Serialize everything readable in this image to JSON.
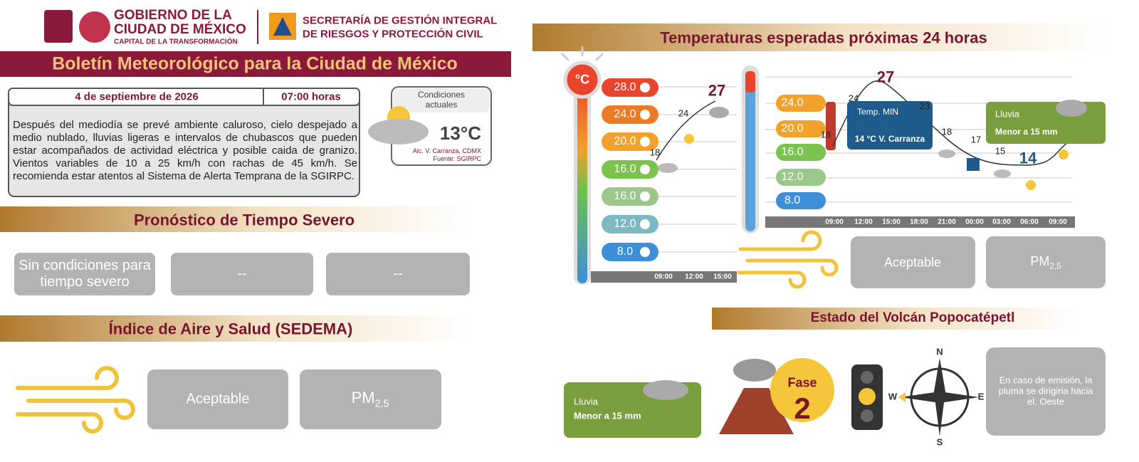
{
  "header": {
    "gov_line1": "GOBIERNO DE LA",
    "gov_line2": "CIUDAD DE MÉXICO",
    "gov_motto": "CAPITAL DE LA TRANSFORMACIÓN",
    "secretaria_line1": "SECRETARÍA DE GESTIÓN INTEGRAL",
    "secretaria_line2": "DE RIESGOS Y PROTECCIÓN CIVIL"
  },
  "title": "Boletín Meteorológico para la Ciudad de México",
  "bulletin": {
    "date": "4 de septiembre de 2026",
    "time": "07:00 horas",
    "text": "Después del mediodía se prevé ambiente caluroso, cielo despejado a medio nublado, lluvias ligeras e intervalos de chubascos que pueden estar acompañados de actividad eléctrica y posible caida de granizo. Vientos variables de 10 a 25 km/h con rachas de 45 km/h. Se recomienda estar atentos al Sistema de Alerta Temprana de la SGIRPC."
  },
  "current": {
    "label": "Condiciones actuales",
    "temperature": "13°C",
    "location": "Alc. V. Carranza, CDMX",
    "source": "Fuente: SGIRPC"
  },
  "severe": {
    "title": "Pronóstico de Tiempo Severo",
    "items": [
      "Sin condiciones para tiempo severo",
      "--",
      "--"
    ]
  },
  "air": {
    "title": "Índice de Aire y Salud (SEDEMA)",
    "quality": "Aceptable",
    "pollutant": "PM",
    "pollutant_sub": "2,5"
  },
  "temperatures": {
    "title": "Temperaturas esperadas próximas 24 horas",
    "unit": "°C",
    "panel1": {
      "scale": [
        "28.0",
        "24.0",
        "20.0",
        "16.0",
        "16.0",
        "12.0",
        "8.0"
      ],
      "times": [
        "09:00",
        "12:00",
        "15:00"
      ],
      "points": [
        "18",
        "24",
        "27"
      ]
    },
    "panel2": {
      "scale": [
        "24.0",
        "20.0",
        "16.0",
        "12.0",
        "8.0"
      ],
      "times": [
        "09:00",
        "12:00",
        "15:00",
        "18:00",
        "21:00",
        "00:00",
        "03:00",
        "06:00",
        "09:00"
      ],
      "points": [
        "18",
        "24",
        "27",
        "23",
        "18",
        "17",
        "15",
        "14"
      ],
      "min_label": "Temp. MIN",
      "min_detail": "14 °C V. Carranza",
      "rain_label": "Lluvia",
      "rain_detail": "Menor a 15 mm"
    },
    "air_quality": "Aceptable",
    "pollutant": "PM",
    "pollutant_sub": "2,5"
  },
  "volcano": {
    "title": "Estado del Volcán Popocatépetl",
    "rain_label": "Lluvia",
    "rain_detail": "Menor a 15 mm",
    "phase_label": "Fase",
    "phase": "2",
    "compass": {
      "n": "N",
      "s": "S",
      "e": "E",
      "w": "W"
    },
    "plume": "En caso de emisión, la pluma se dirigiria hacia el. Oeste"
  }
}
